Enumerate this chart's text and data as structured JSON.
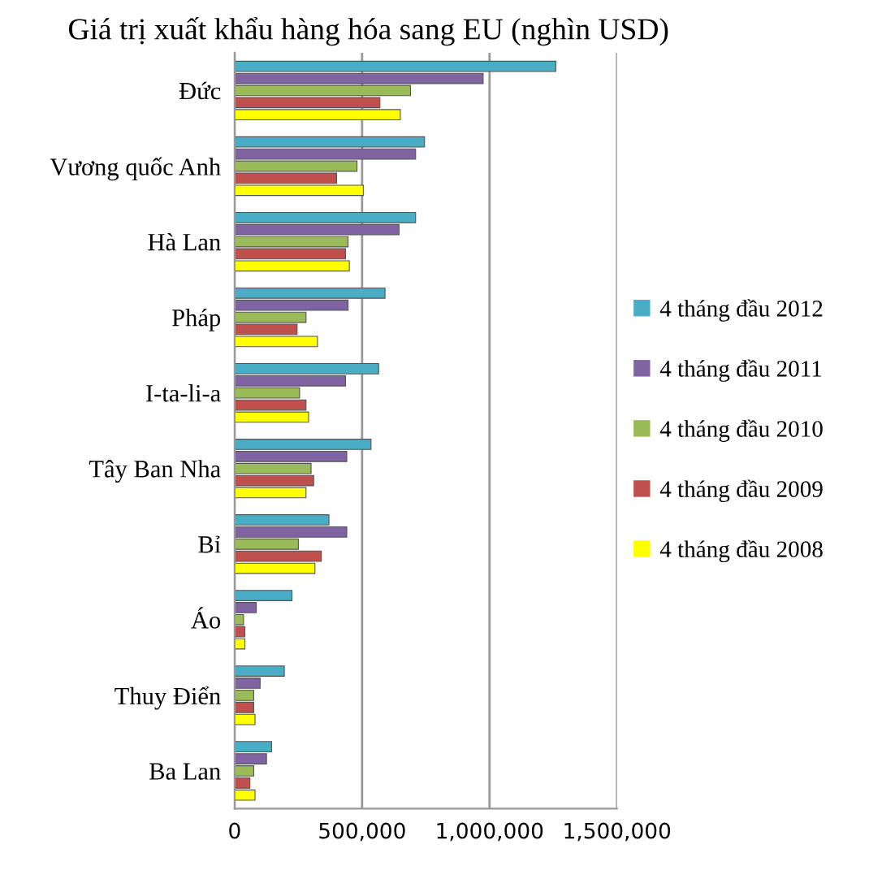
{
  "chart_data": {
    "type": "bar",
    "orientation": "horizontal",
    "title": "Giá trị xuất khẩu hàng hóa sang EU (nghìn USD)",
    "categories": [
      "Đức",
      "Vương quốc Anh",
      "Hà Lan",
      "Pháp",
      "I-ta-li-a",
      "Tây Ban Nha",
      "Bỉ",
      "Áo",
      "Thuy Điển",
      "Ba Lan"
    ],
    "series": [
      {
        "name": "4 tháng đầu 2012",
        "color": "#4bacc6",
        "values": [
          1260000,
          745000,
          710000,
          590000,
          565000,
          535000,
          370000,
          225000,
          195000,
          145000
        ]
      },
      {
        "name": "4 tháng đầu 2011",
        "color": "#8064a2",
        "values": [
          975000,
          710000,
          645000,
          445000,
          435000,
          440000,
          440000,
          85000,
          100000,
          125000
        ]
      },
      {
        "name": "4 tháng đầu 2010",
        "color": "#9bbb59",
        "values": [
          690000,
          480000,
          445000,
          280000,
          255000,
          300000,
          250000,
          35000,
          75000,
          75000
        ]
      },
      {
        "name": "4 tháng đầu 2009",
        "color": "#c0504d",
        "values": [
          570000,
          400000,
          435000,
          245000,
          280000,
          310000,
          340000,
          40000,
          75000,
          60000
        ]
      },
      {
        "name": "4 tháng đầu 2008",
        "color": "#ffff00",
        "values": [
          650000,
          505000,
          450000,
          325000,
          290000,
          280000,
          315000,
          40000,
          80000,
          80000
        ]
      }
    ],
    "xlim": [
      0,
      1500000
    ],
    "xticks": [
      {
        "value": 0,
        "label": "0"
      },
      {
        "value": 500000,
        "label": "500,000"
      },
      {
        "value": 1000000,
        "label": "1,000,000"
      },
      {
        "value": 1500000,
        "label": "1,500,000"
      }
    ],
    "grid": "x",
    "legend": "right"
  }
}
